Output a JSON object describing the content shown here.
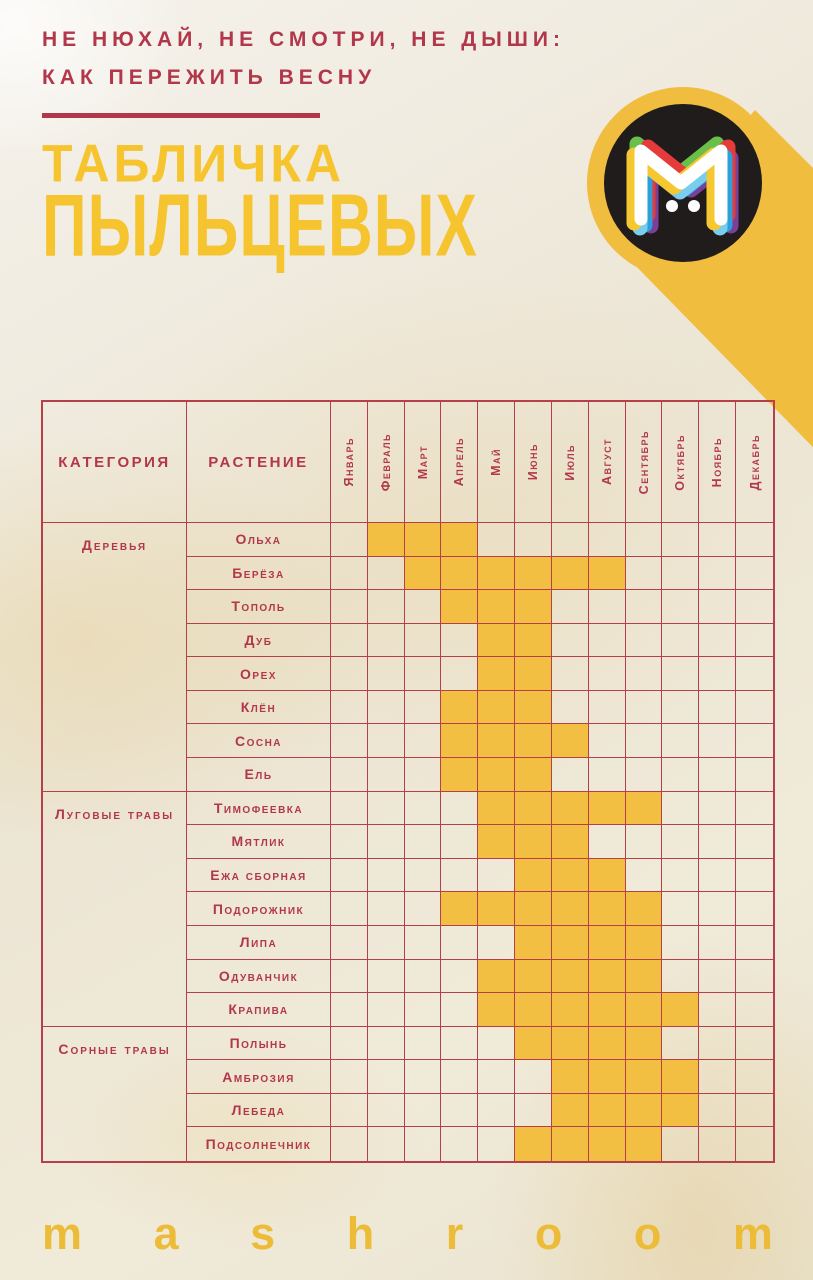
{
  "page": {
    "tagline_line1": "НЕ НЮХАЙ, НЕ СМОТРИ, НЕ ДЫШИ:",
    "tagline_line2": "КАК ПЕРЕЖИТЬ ВЕСНУ",
    "title_line1": "ТАБЛИЧКА",
    "title_line2": "ПЫЛЬЦЕВЫХ",
    "brand_footer": "mashroom",
    "logo_letter": "M"
  },
  "colors": {
    "accent_yellow": "#f3bf43",
    "crimson": "#b2374b",
    "paper": "#efe9da",
    "logo_black": "#201c1b"
  },
  "chart_data": {
    "type": "heatmap",
    "title": "Табличка пыльцевых",
    "col_headers": [
      "КАТЕГОРИЯ",
      "РАСТЕНИЕ"
    ],
    "months": [
      "Январь",
      "Февраль",
      "Март",
      "Апрель",
      "Май",
      "Июнь",
      "Июль",
      "Август",
      "Сентябрь",
      "Октябрь",
      "Ноябрь",
      "Декабрь"
    ],
    "categories": [
      {
        "label": "Деревья",
        "plants": [
          {
            "name": "Ольха",
            "months": [
              2,
              3,
              4
            ]
          },
          {
            "name": "Берёза",
            "months": [
              3,
              4,
              5,
              6,
              7,
              8
            ]
          },
          {
            "name": "Тополь",
            "months": [
              4,
              5,
              6
            ]
          },
          {
            "name": "Дуб",
            "months": [
              5,
              6
            ]
          },
          {
            "name": "Орех",
            "months": [
              5,
              6
            ]
          },
          {
            "name": "Клён",
            "months": [
              4,
              5,
              6
            ]
          },
          {
            "name": "Сосна",
            "months": [
              4,
              5,
              6,
              7
            ]
          },
          {
            "name": "Ель",
            "months": [
              4,
              5,
              6
            ]
          }
        ]
      },
      {
        "label": "Луговые травы",
        "plants": [
          {
            "name": "Тимофеевка",
            "months": [
              5,
              6,
              7,
              8,
              9
            ]
          },
          {
            "name": "Мятлик",
            "months": [
              5,
              6,
              7
            ]
          },
          {
            "name": "Ежа сборная",
            "months": [
              6,
              7,
              8
            ]
          },
          {
            "name": "Подорожник",
            "months": [
              4,
              5,
              6,
              7,
              8,
              9
            ]
          },
          {
            "name": "Липа",
            "months": [
              6,
              7,
              8,
              9
            ]
          },
          {
            "name": "Одуванчик",
            "months": [
              5,
              6,
              7,
              8,
              9
            ]
          },
          {
            "name": "Крапива",
            "months": [
              5,
              6,
              7,
              8,
              9,
              10
            ]
          }
        ]
      },
      {
        "label": "Сорные травы",
        "plants": [
          {
            "name": "Полынь",
            "months": [
              6,
              7,
              8,
              9
            ]
          },
          {
            "name": "Амброзия",
            "months": [
              7,
              8,
              9,
              10
            ]
          },
          {
            "name": "Лебеда",
            "months": [
              7,
              8,
              9,
              10
            ]
          },
          {
            "name": "Подсолнечник",
            "months": [
              6,
              7,
              8,
              9
            ]
          }
        ]
      }
    ]
  }
}
